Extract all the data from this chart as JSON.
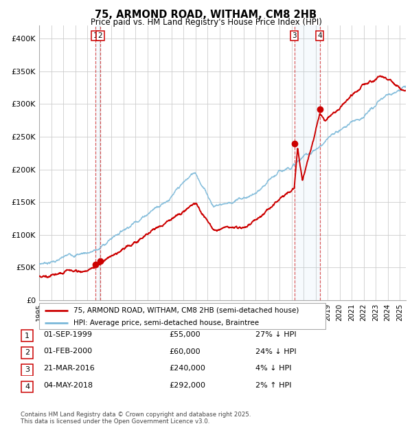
{
  "title": "75, ARMOND ROAD, WITHAM, CM8 2HB",
  "subtitle": "Price paid vs. HM Land Registry's House Price Index (HPI)",
  "hpi_color": "#7ab8d9",
  "price_color": "#cc0000",
  "background_color": "#ffffff",
  "grid_color": "#cccccc",
  "ylim": [
    0,
    420000
  ],
  "yticks": [
    0,
    50000,
    100000,
    150000,
    200000,
    250000,
    300000,
    350000,
    400000
  ],
  "ytick_labels": [
    "£0",
    "£50K",
    "£100K",
    "£150K",
    "£200K",
    "£250K",
    "£300K",
    "£350K",
    "£400K"
  ],
  "sales": [
    {
      "num": 1,
      "date": "01-SEP-1999",
      "price": 55000,
      "pct": "27%",
      "dir": "↓"
    },
    {
      "num": 2,
      "date": "01-FEB-2000",
      "price": 60000,
      "pct": "24%",
      "dir": "↓"
    },
    {
      "num": 3,
      "date": "21-MAR-2016",
      "price": 240000,
      "pct": "4%",
      "dir": "↓"
    },
    {
      "num": 4,
      "date": "04-MAY-2018",
      "price": 292000,
      "pct": "2%",
      "dir": "↑"
    }
  ],
  "sale_dates_decimal": [
    1999.67,
    2000.08,
    2016.22,
    2018.34
  ],
  "sale_prices": [
    55000,
    60000,
    240000,
    292000
  ],
  "footnote": "Contains HM Land Registry data © Crown copyright and database right 2025.\nThis data is licensed under the Open Government Licence v3.0.",
  "legend_property": "75, ARMOND ROAD, WITHAM, CM8 2HB (semi-detached house)",
  "legend_hpi": "HPI: Average price, semi-detached house, Braintree",
  "xstart": 1995,
  "xend": 2025.5
}
